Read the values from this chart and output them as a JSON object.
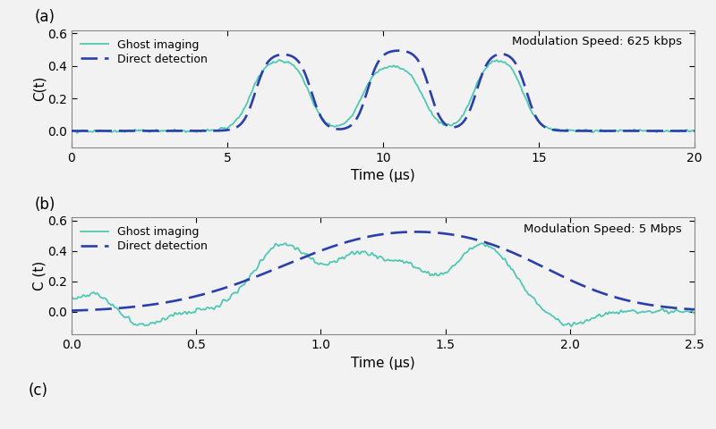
{
  "panel_a": {
    "title_label": "(a)",
    "annotation": "Modulation Speed: 625 kbps",
    "xlabel": "Time (μs)",
    "ylabel": "C(t)",
    "xlim": [
      0,
      20
    ],
    "ylim": [
      -0.1,
      0.62
    ],
    "yticks": [
      0.0,
      0.2,
      0.4,
      0.6
    ],
    "xticks": [
      0,
      5,
      10,
      15,
      20
    ]
  },
  "panel_b": {
    "title_label": "(b)",
    "annotation": "Modulation Speed: 5 Mbps",
    "xlabel": "Time (μs)",
    "ylabel": "C (t)",
    "xlim": [
      0,
      2.5
    ],
    "ylim": [
      -0.15,
      0.62
    ],
    "yticks": [
      0.0,
      0.2,
      0.4,
      0.6
    ],
    "xticks": [
      0,
      0.5,
      1.0,
      1.5,
      2.0,
      2.5
    ]
  },
  "ghost_color": "#50c8b4",
  "direct_color": "#2a3faa",
  "ghost_linewidth": 1.3,
  "direct_linewidth": 1.9,
  "legend_ghost": "Ghost imaging",
  "legend_direct": "Direct detection",
  "bg_color": "#f2f2f2"
}
